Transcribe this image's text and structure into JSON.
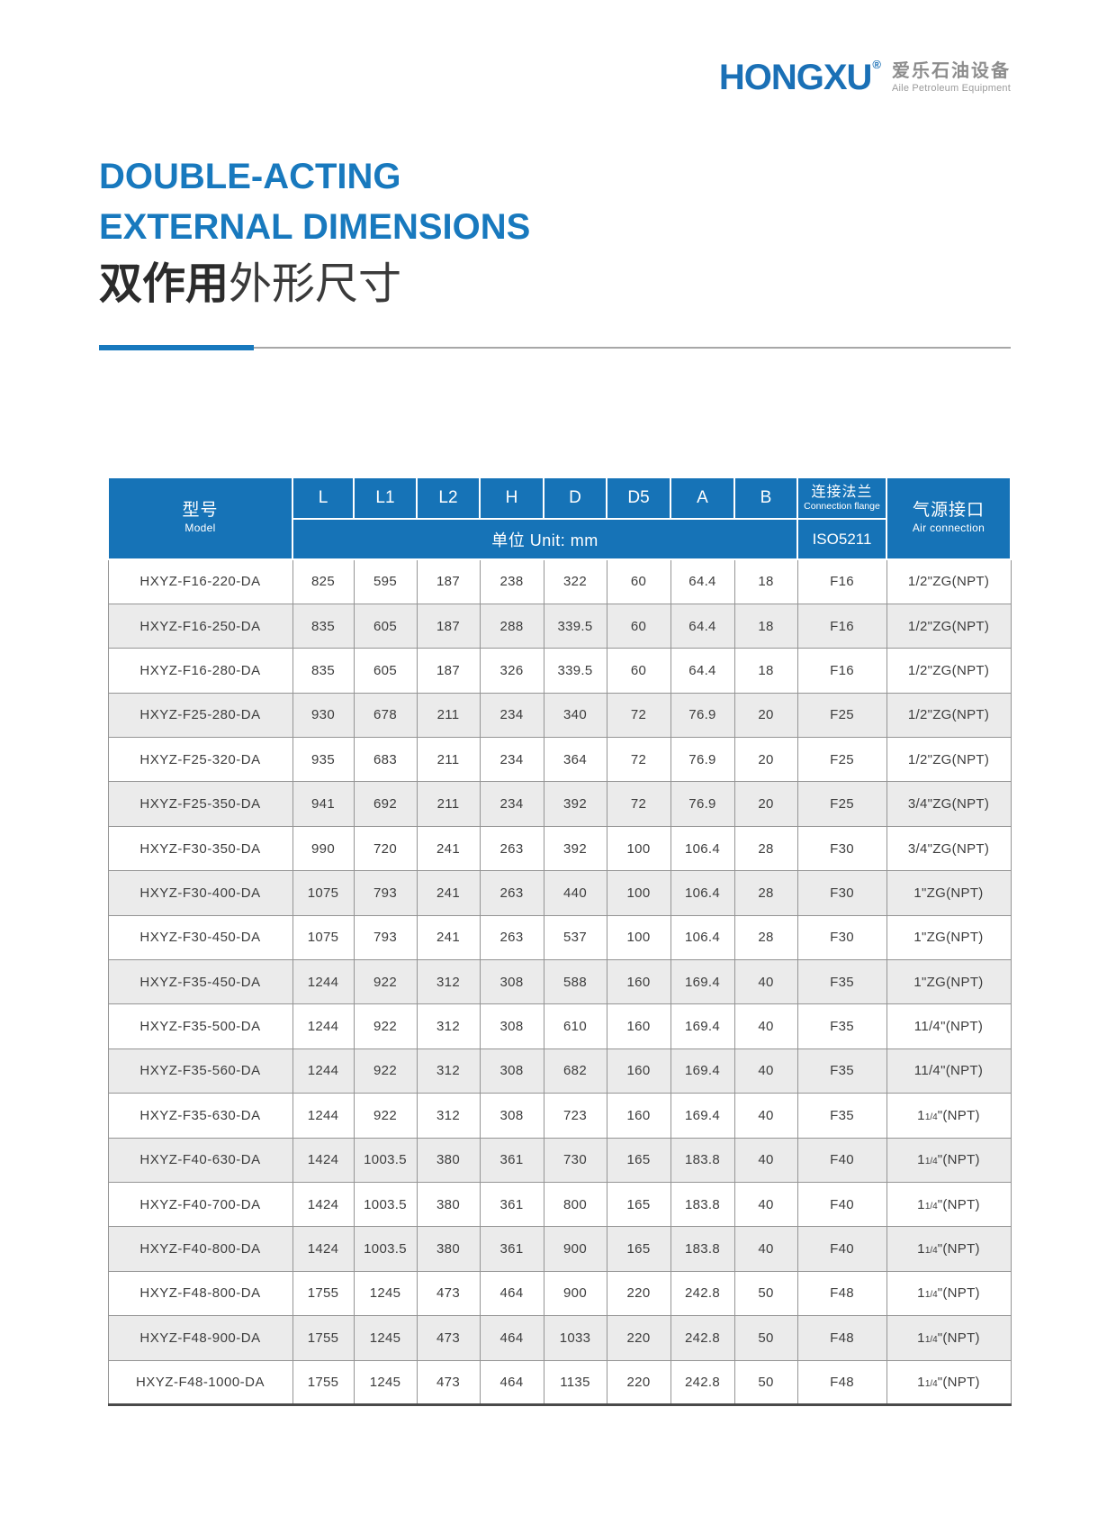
{
  "logo": {
    "brand": "HONGXU",
    "reg": "®",
    "cn": "爱乐石油设备",
    "en": "Aile Petroleum Equipment",
    "brand_color": "#1a70b6"
  },
  "title": {
    "line1": "DOUBLE-ACTING",
    "line2": "EXTERNAL DIMENSIONS",
    "cn_bold": "双作用",
    "cn_rest": "外形尺寸",
    "accent_color": "#1879be"
  },
  "table": {
    "header": {
      "model_cn": "型号",
      "model_en": "Model",
      "dims": [
        "L",
        "L1",
        "L2",
        "H",
        "D",
        "D5",
        "A",
        "B"
      ],
      "unit_label": "单位 Unit: mm",
      "flange_cn": "连接法兰",
      "flange_en": "Connection flange",
      "flange_std": "ISO5211",
      "air_cn": "气源接口",
      "air_en": "Air connection",
      "header_bg": "#1673b7"
    },
    "rows": [
      {
        "model": "HXYZ-F16-220-DA",
        "vals": [
          "825",
          "595",
          "187",
          "238",
          "322",
          "60",
          "64.4",
          "18"
        ],
        "flange": "F16",
        "air": "1/2\"ZG(NPT)"
      },
      {
        "model": "HXYZ-F16-250-DA",
        "vals": [
          "835",
          "605",
          "187",
          "288",
          "339.5",
          "60",
          "64.4",
          "18"
        ],
        "flange": "F16",
        "air": "1/2\"ZG(NPT)"
      },
      {
        "model": "HXYZ-F16-280-DA",
        "vals": [
          "835",
          "605",
          "187",
          "326",
          "339.5",
          "60",
          "64.4",
          "18"
        ],
        "flange": "F16",
        "air": "1/2\"ZG(NPT)"
      },
      {
        "model": "HXYZ-F25-280-DA",
        "vals": [
          "930",
          "678",
          "211",
          "234",
          "340",
          "72",
          "76.9",
          "20"
        ],
        "flange": "F25",
        "air": "1/2\"ZG(NPT)"
      },
      {
        "model": "HXYZ-F25-320-DA",
        "vals": [
          "935",
          "683",
          "211",
          "234",
          "364",
          "72",
          "76.9",
          "20"
        ],
        "flange": "F25",
        "air": "1/2\"ZG(NPT)"
      },
      {
        "model": "HXYZ-F25-350-DA",
        "vals": [
          "941",
          "692",
          "211",
          "234",
          "392",
          "72",
          "76.9",
          "20"
        ],
        "flange": "F25",
        "air": "3/4\"ZG(NPT)"
      },
      {
        "model": "HXYZ-F30-350-DA",
        "vals": [
          "990",
          "720",
          "241",
          "263",
          "392",
          "100",
          "106.4",
          "28"
        ],
        "flange": "F30",
        "air": "3/4\"ZG(NPT)"
      },
      {
        "model": "HXYZ-F30-400-DA",
        "vals": [
          "1075",
          "793",
          "241",
          "263",
          "440",
          "100",
          "106.4",
          "28"
        ],
        "flange": "F30",
        "air": "1\"ZG(NPT)"
      },
      {
        "model": "HXYZ-F30-450-DA",
        "vals": [
          "1075",
          "793",
          "241",
          "263",
          "537",
          "100",
          "106.4",
          "28"
        ],
        "flange": "F30",
        "air": "1\"ZG(NPT)"
      },
      {
        "model": "HXYZ-F35-450-DA",
        "vals": [
          "1244",
          "922",
          "312",
          "308",
          "588",
          "160",
          "169.4",
          "40"
        ],
        "flange": "F35",
        "air": "1\"ZG(NPT)"
      },
      {
        "model": "HXYZ-F35-500-DA",
        "vals": [
          "1244",
          "922",
          "312",
          "308",
          "610",
          "160",
          "169.4",
          "40"
        ],
        "flange": "F35",
        "air": "11/4\"(NPT)"
      },
      {
        "model": "HXYZ-F35-560-DA",
        "vals": [
          "1244",
          "922",
          "312",
          "308",
          "682",
          "160",
          "169.4",
          "40"
        ],
        "flange": "F35",
        "air": "11/4\"(NPT)"
      },
      {
        "model": "HXYZ-F35-630-DA",
        "vals": [
          "1244",
          "922",
          "312",
          "308",
          "723",
          "160",
          "169.4",
          "40"
        ],
        "flange": "F35",
        "air": {
          "pre": "1",
          "frac": "1/4",
          "post": "\"(NPT)"
        }
      },
      {
        "model": "HXYZ-F40-630-DA",
        "vals": [
          "1424",
          "1003.5",
          "380",
          "361",
          "730",
          "165",
          "183.8",
          "40"
        ],
        "flange": "F40",
        "air": {
          "pre": "1",
          "frac": "1/4",
          "post": "\"(NPT)"
        }
      },
      {
        "model": "HXYZ-F40-700-DA",
        "vals": [
          "1424",
          "1003.5",
          "380",
          "361",
          "800",
          "165",
          "183.8",
          "40"
        ],
        "flange": "F40",
        "air": {
          "pre": "1",
          "frac": "1/4",
          "post": "\"(NPT)"
        }
      },
      {
        "model": "HXYZ-F40-800-DA",
        "vals": [
          "1424",
          "1003.5",
          "380",
          "361",
          "900",
          "165",
          "183.8",
          "40"
        ],
        "flange": "F40",
        "air": {
          "pre": "1",
          "frac": "1/4",
          "post": "\"(NPT)"
        }
      },
      {
        "model": "HXYZ-F48-800-DA",
        "vals": [
          "1755",
          "1245",
          "473",
          "464",
          "900",
          "220",
          "242.8",
          "50"
        ],
        "flange": "F48",
        "air": {
          "pre": "1",
          "frac": "1/4",
          "post": "\"(NPT)"
        }
      },
      {
        "model": "HXYZ-F48-900-DA",
        "vals": [
          "1755",
          "1245",
          "473",
          "464",
          "1033",
          "220",
          "242.8",
          "50"
        ],
        "flange": "F48",
        "air": {
          "pre": "1",
          "frac": "1/4",
          "post": "\"(NPT)"
        }
      },
      {
        "model": "HXYZ-F48-1000-DA",
        "vals": [
          "1755",
          "1245",
          "473",
          "464",
          "1135",
          "220",
          "242.8",
          "50"
        ],
        "flange": "F48",
        "air": {
          "pre": "1",
          "frac": "1/4",
          "post": "\"(NPT)"
        }
      }
    ]
  }
}
